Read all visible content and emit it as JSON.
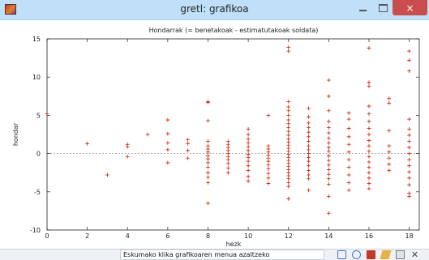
{
  "window": {
    "title": "gretl: grafikoa",
    "minimize_icon": "minimize-icon",
    "maximize_icon": "maximize-icon",
    "close_glyph": "×"
  },
  "statusbar": {
    "text": "Eskumako klika grafikoaren menua azaltzeko",
    "tools": [
      "zoom-icon",
      "target-icon",
      "pdf-icon",
      "edit-icon",
      "print-icon",
      "close-icon"
    ]
  },
  "colors": {
    "points": "#cc2200",
    "axis": "#222222",
    "zero_line": "#888888"
  },
  "chart_data": {
    "type": "scatter",
    "title": "Hondarrak (= benetakoak - estimatutakoak soldata)",
    "xlabel": "hezk",
    "ylabel": "hondar",
    "xlim": [
      0,
      18.5
    ],
    "ylim": [
      -10,
      15
    ],
    "xticks": [
      0,
      2,
      4,
      6,
      8,
      10,
      12,
      14,
      16,
      18
    ],
    "yticks": [
      -10,
      -5,
      0,
      5,
      10,
      15
    ],
    "zero_line": true,
    "grid": false,
    "marker": "+",
    "points": [
      [
        0,
        5.2
      ],
      [
        2,
        1.3
      ],
      [
        3,
        -2.8
      ],
      [
        4,
        1.2
      ],
      [
        4,
        0.9
      ],
      [
        4,
        -0.4
      ],
      [
        5,
        2.5
      ],
      [
        6,
        4.4
      ],
      [
        6,
        2.6
      ],
      [
        6,
        1.4
      ],
      [
        6,
        0.5
      ],
      [
        6,
        -1.2
      ],
      [
        7,
        1.8
      ],
      [
        7,
        1.3
      ],
      [
        7,
        0.4
      ],
      [
        7,
        -0.6
      ],
      [
        8,
        6.8
      ],
      [
        8,
        6.7
      ],
      [
        8,
        4.3
      ],
      [
        8,
        1.6
      ],
      [
        8,
        1.0
      ],
      [
        8,
        0.6
      ],
      [
        8,
        0.2
      ],
      [
        8,
        -0.3
      ],
      [
        8,
        -0.7
      ],
      [
        8,
        -1.2
      ],
      [
        8,
        -1.8
      ],
      [
        8,
        -2.5
      ],
      [
        8,
        -3.1
      ],
      [
        8,
        -3.8
      ],
      [
        8,
        -6.5
      ],
      [
        9,
        1.6
      ],
      [
        9,
        1.2
      ],
      [
        9,
        0.8
      ],
      [
        9,
        0.4
      ],
      [
        9,
        0.0
      ],
      [
        9,
        -0.4
      ],
      [
        9,
        -0.8
      ],
      [
        9,
        -1.3
      ],
      [
        9,
        -1.9
      ],
      [
        9,
        -2.5
      ],
      [
        10,
        3.2
      ],
      [
        10,
        2.5
      ],
      [
        10,
        1.9
      ],
      [
        10,
        1.4
      ],
      [
        10,
        0.9
      ],
      [
        10,
        0.4
      ],
      [
        10,
        -0.1
      ],
      [
        10,
        -0.5
      ],
      [
        10,
        -1.0
      ],
      [
        10,
        -1.6
      ],
      [
        10,
        -2.2
      ],
      [
        10,
        -3.0
      ],
      [
        10,
        -3.6
      ],
      [
        11,
        5.0
      ],
      [
        11,
        1.0
      ],
      [
        11,
        0.6
      ],
      [
        11,
        0.2
      ],
      [
        11,
        -0.2
      ],
      [
        11,
        -0.6
      ],
      [
        11,
        -1.0
      ],
      [
        11,
        -1.5
      ],
      [
        11,
        -2.0
      ],
      [
        11,
        -2.6
      ],
      [
        11,
        -3.2
      ],
      [
        11,
        -3.9
      ],
      [
        12,
        13.9
      ],
      [
        12,
        13.4
      ],
      [
        12,
        6.8
      ],
      [
        12,
        6.1
      ],
      [
        12,
        5.6
      ],
      [
        12,
        5.0
      ],
      [
        12,
        4.4
      ],
      [
        12,
        3.9
      ],
      [
        12,
        3.4
      ],
      [
        12,
        2.9
      ],
      [
        12,
        2.4
      ],
      [
        12,
        1.9
      ],
      [
        12,
        1.5
      ],
      [
        12,
        1.1
      ],
      [
        12,
        0.7
      ],
      [
        12,
        0.3
      ],
      [
        12,
        -0.1
      ],
      [
        12,
        -0.5
      ],
      [
        12,
        -0.9
      ],
      [
        12,
        -1.3
      ],
      [
        12,
        -1.7
      ],
      [
        12,
        -2.1
      ],
      [
        12,
        -2.5
      ],
      [
        12,
        -2.9
      ],
      [
        12,
        -3.3
      ],
      [
        12,
        -3.8
      ],
      [
        12,
        -4.3
      ],
      [
        12,
        -5.9
      ],
      [
        13,
        5.9
      ],
      [
        13,
        4.8
      ],
      [
        13,
        4.0
      ],
      [
        13,
        3.4
      ],
      [
        13,
        2.8
      ],
      [
        13,
        2.2
      ],
      [
        13,
        1.6
      ],
      [
        13,
        1.0
      ],
      [
        13,
        0.5
      ],
      [
        13,
        0.0
      ],
      [
        13,
        -0.5
      ],
      [
        13,
        -1.0
      ],
      [
        13,
        -1.6
      ],
      [
        13,
        -2.2
      ],
      [
        13,
        -2.8
      ],
      [
        13,
        -3.3
      ],
      [
        13,
        -4.8
      ],
      [
        14,
        9.6
      ],
      [
        14,
        7.5
      ],
      [
        14,
        5.6
      ],
      [
        14,
        4.2
      ],
      [
        14,
        3.4
      ],
      [
        14,
        2.7
      ],
      [
        14,
        2.0
      ],
      [
        14,
        1.4
      ],
      [
        14,
        0.8
      ],
      [
        14,
        0.3
      ],
      [
        14,
        -0.3
      ],
      [
        14,
        -0.9
      ],
      [
        14,
        -1.5
      ],
      [
        14,
        -2.1
      ],
      [
        14,
        -2.7
      ],
      [
        14,
        -3.3
      ],
      [
        14,
        -4.0
      ],
      [
        14,
        -5.6
      ],
      [
        14,
        -7.8
      ],
      [
        15,
        5.3
      ],
      [
        15,
        4.5
      ],
      [
        15,
        3.3
      ],
      [
        15,
        2.2
      ],
      [
        15,
        1.2
      ],
      [
        15,
        0.2
      ],
      [
        15,
        -0.8
      ],
      [
        15,
        -1.8
      ],
      [
        15,
        -2.8
      ],
      [
        15,
        -3.8
      ],
      [
        15,
        -4.8
      ],
      [
        16,
        13.8
      ],
      [
        16,
        9.3
      ],
      [
        16,
        8.8
      ],
      [
        16,
        6.2
      ],
      [
        16,
        5.2
      ],
      [
        16,
        4.2
      ],
      [
        16,
        3.3
      ],
      [
        16,
        2.5
      ],
      [
        16,
        1.7
      ],
      [
        16,
        1.0
      ],
      [
        16,
        0.3
      ],
      [
        16,
        -0.4
      ],
      [
        16,
        -1.1
      ],
      [
        16,
        -1.8
      ],
      [
        16,
        -2.5
      ],
      [
        16,
        -3.2
      ],
      [
        16,
        -3.9
      ],
      [
        16,
        -4.6
      ],
      [
        17,
        7.2
      ],
      [
        17,
        6.6
      ],
      [
        17,
        3.0
      ],
      [
        17,
        1.0
      ],
      [
        17,
        0.2
      ],
      [
        17,
        -0.6
      ],
      [
        17,
        -1.4
      ],
      [
        17,
        -2.2
      ],
      [
        18,
        13.4
      ],
      [
        18,
        12.2
      ],
      [
        18,
        10.8
      ],
      [
        18,
        4.5
      ],
      [
        18,
        3.2
      ],
      [
        18,
        2.4
      ],
      [
        18,
        1.6
      ],
      [
        18,
        0.8
      ],
      [
        18,
        0.0
      ],
      [
        18,
        -0.8
      ],
      [
        18,
        -1.6
      ],
      [
        18,
        -2.4
      ],
      [
        18,
        -3.2
      ],
      [
        18,
        -4.1
      ],
      [
        18,
        -5.2
      ],
      [
        18,
        -5.6
      ]
    ]
  }
}
